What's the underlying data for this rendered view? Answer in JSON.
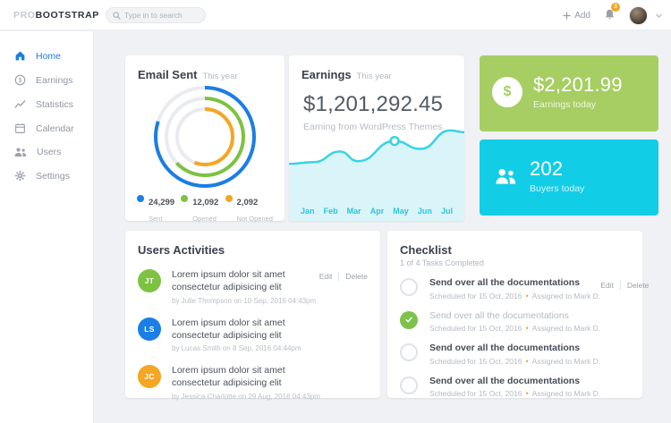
{
  "topbar": {
    "logo": {
      "pro": "PRO",
      "bootstrap": "BOOTSTRAP"
    },
    "search_placeholder": "Type in to search",
    "add_label": "Add",
    "notification_count": "3"
  },
  "sidebar": {
    "items": [
      {
        "label": "Home",
        "icon": "home-icon",
        "active": true
      },
      {
        "label": "Earnings",
        "icon": "dollar-circle-icon",
        "active": false
      },
      {
        "label": "Statistics",
        "icon": "chart-line-icon",
        "active": false
      },
      {
        "label": "Calendar",
        "icon": "calendar-icon",
        "active": false
      },
      {
        "label": "Users",
        "icon": "users-icon",
        "active": false
      },
      {
        "label": "Settings",
        "icon": "gear-icon",
        "active": false
      }
    ]
  },
  "cards": {
    "email_sent": {
      "title": "Email Sent",
      "subtitle": "This year",
      "legend": [
        {
          "value": "24,299",
          "label": "Sent",
          "color": "#1a7ee5"
        },
        {
          "value": "12,092",
          "label": "Opened",
          "color": "#7dc242"
        },
        {
          "value": "2,092",
          "label": "Not Opened",
          "color": "#f5a623"
        }
      ]
    },
    "earnings": {
      "title": "Earnings",
      "subtitle": "This year",
      "amount": "$1,201,292.45",
      "caption": "Earning from WordPress Themes"
    },
    "earnings_today": {
      "amount": "$2,201.99",
      "label": "Earnings today",
      "bg": "#a6ce63"
    },
    "buyers_today": {
      "amount": "202",
      "label": "Buyers today",
      "bg": "#12cde6"
    },
    "activities": {
      "title": "Users Activities",
      "edit_label": "Edit",
      "delete_label": "Delete",
      "items": [
        {
          "initials": "JT",
          "color": "#7dc242",
          "text": "Lorem ipsum dolor sit amet consectetur adipisicing elit",
          "meta": "by Julie Thompson on 10 Sep, 2016 04:43pm"
        },
        {
          "initials": "LS",
          "color": "#1a7ee5",
          "text": "Lorem ipsum dolor sit amet consectetur adipisicing elit",
          "meta": "by Lucas Smith on 8 Sep, 2016 04:44pm"
        },
        {
          "initials": "JC",
          "color": "#f5a623",
          "text": "Lorem ipsum dolor sit amet consectetur adipisicing elit",
          "meta": "by Jessica Charlotte on 29 Aug, 2016 04:43pm"
        }
      ]
    },
    "checklist": {
      "title": "Checklist",
      "subtitle": "1 of 4 Tasks Completed",
      "edit_label": "Edit",
      "delete_label": "Delete",
      "bullet": "•",
      "items": [
        {
          "text": "Send over all the documentations",
          "meta_date": "Scheduled for 15 Oct, 2016",
          "meta_assigned": "Assigned to Mark D.",
          "done": false
        },
        {
          "text": "Send over all the documentations",
          "meta_date": "Scheduled for 15 Oct, 2016",
          "meta_assigned": "Assigned to Mark D.",
          "done": true
        },
        {
          "text": "Send over all the documentations",
          "meta_date": "Scheduled for 15 Oct, 2016",
          "meta_assigned": "Assigned to Mark D.",
          "done": false
        },
        {
          "text": "Send over all the documentations",
          "meta_date": "Scheduled for 15 Oct, 2016",
          "meta_assigned": "Assigned to Mark D.",
          "done": false
        }
      ]
    }
  },
  "chart_data": [
    {
      "type": "donut",
      "title": "Email Sent This year",
      "series": [
        {
          "name": "Sent",
          "value": 24299,
          "percent": 80,
          "color": "#1a7ee5"
        },
        {
          "name": "Opened",
          "value": 12092,
          "percent": 63,
          "color": "#7dc242"
        },
        {
          "name": "Not Opened",
          "value": 2092,
          "percent": 56,
          "color": "#f5a623"
        }
      ],
      "track_color": "#e9ebee",
      "legend_position": "bottom"
    },
    {
      "type": "area",
      "title": "Earnings This year",
      "x": [
        "Jan",
        "Feb",
        "Mar",
        "Apr",
        "May",
        "Jun",
        "Jul"
      ],
      "points": [
        [
          0,
          45
        ],
        [
          28,
          43
        ],
        [
          57,
          31
        ],
        [
          77,
          42
        ],
        [
          118,
          19
        ],
        [
          147,
          28
        ],
        [
          180,
          7
        ],
        [
          196,
          9
        ]
      ],
      "marker_index": 4,
      "line_color": "#36d3e6",
      "fill_color": "#d9f5f9",
      "label_color": "#2cc5db",
      "grid": false
    }
  ]
}
